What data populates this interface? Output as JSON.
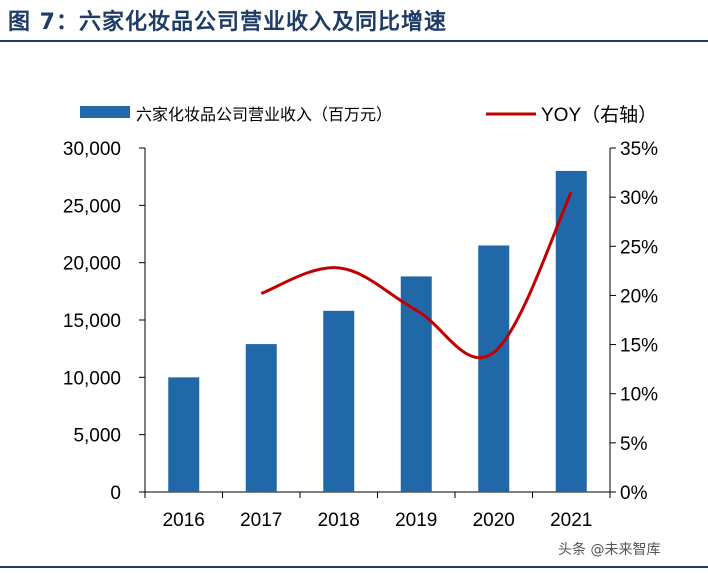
{
  "figure": {
    "title": "图 7：六家化妆品公司营业收入及同比增速",
    "watermark": "头条 @未来智库"
  },
  "colors": {
    "bar": "#2068a8",
    "line": "#c00000",
    "title": "#1f3c66"
  },
  "chart_data": {
    "type": "bar",
    "categories": [
      "2016",
      "2017",
      "2018",
      "2019",
      "2020",
      "2021"
    ],
    "series": [
      {
        "name": "六家化妆品公司营业收入（百万元）",
        "type": "bar",
        "axis": "left",
        "values": [
          10000,
          12900,
          15800,
          18800,
          21500,
          28000
        ]
      },
      {
        "name": "YOY（右轴）",
        "type": "line",
        "axis": "right",
        "values": [
          null,
          20.2,
          22.8,
          18.5,
          14.2,
          30.5
        ]
      }
    ],
    "ylim_left": [
      0,
      30000
    ],
    "ylim_right": [
      0,
      35
    ],
    "yticks_left": [
      "0",
      "5,000",
      "10,000",
      "15,000",
      "20,000",
      "25,000",
      "30,000"
    ],
    "yticks_right": [
      "0%",
      "5%",
      "10%",
      "15%",
      "20%",
      "25%",
      "30%",
      "35%"
    ],
    "legend_position": "top",
    "grid": false
  }
}
